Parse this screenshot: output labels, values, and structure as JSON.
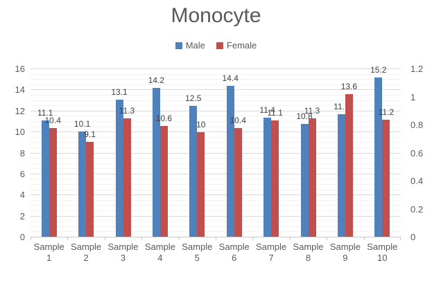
{
  "chart_data": {
    "type": "bar",
    "title": "Monocyte",
    "categories": [
      "Sample 1",
      "Sample 2",
      "Sample 3",
      "Sample 4",
      "Sample 5",
      "Sample 6",
      "Sample 7",
      "Sample 8",
      "Sample 9",
      "Sample 10"
    ],
    "series": [
      {
        "name": "Male",
        "color": "#4f81bd",
        "values": [
          11.1,
          10.1,
          13.1,
          14.2,
          12.5,
          14.4,
          11.4,
          10.8,
          11.7,
          15.2
        ]
      },
      {
        "name": "Female",
        "color": "#c0504d",
        "values": [
          10.4,
          9.1,
          11.3,
          10.6,
          10,
          10.4,
          11.1,
          11.3,
          13.6,
          11.2
        ]
      }
    ],
    "xlabel": "",
    "ylabel": "",
    "left_axis": {
      "min": 0,
      "max": 16,
      "step": 2,
      "ticks": [
        "0",
        "2",
        "4",
        "6",
        "8",
        "10",
        "12",
        "14",
        "16"
      ]
    },
    "right_axis": {
      "min": 0,
      "max": 1.2,
      "step": 0.2,
      "ticks": [
        "0",
        "0.2",
        "0.4",
        "0.6",
        "0.8",
        "1",
        "1.2"
      ]
    },
    "grid": {
      "major": true,
      "minor": true
    },
    "legend_position": "top",
    "data_labels": true,
    "colors": {
      "title_text": "#595959",
      "axis_text": "#595959",
      "data_label_text": "#3f3f3f",
      "major_gridline": "#d9d9d9",
      "minor_gridline": "#f2f2f2",
      "axis_line": "#c6c6c6",
      "background": "#ffffff"
    }
  }
}
